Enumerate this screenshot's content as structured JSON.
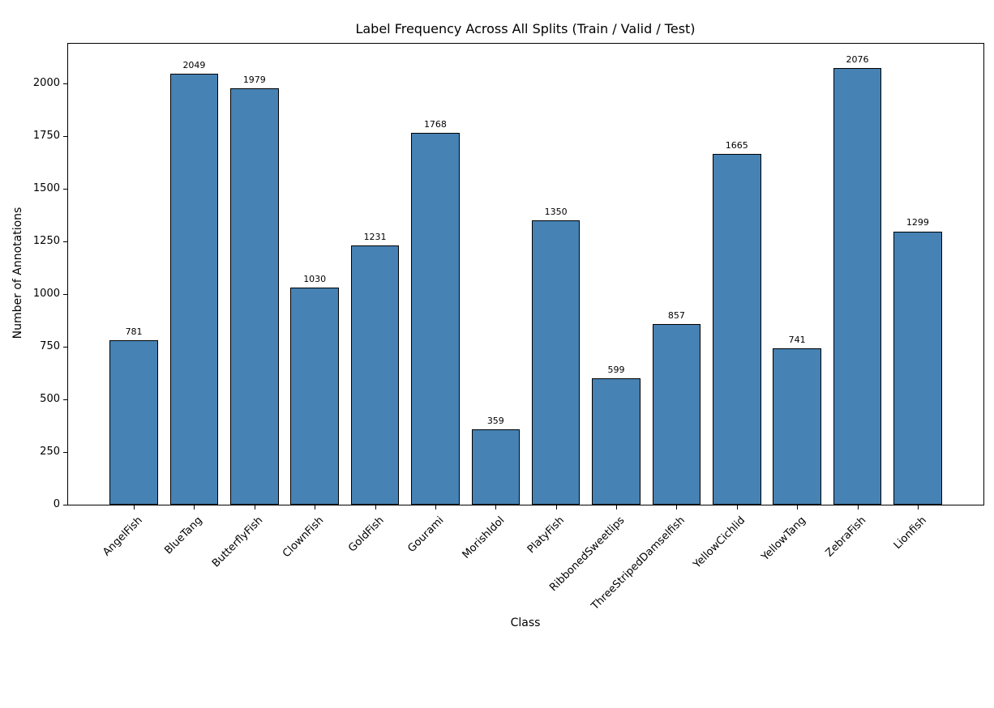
{
  "chart_data": {
    "type": "bar",
    "title": "Label Frequency Across All Splits (Train / Valid / Test)",
    "xlabel": "Class",
    "ylabel": "Number of Annotations",
    "categories": [
      "AngelFish",
      "BlueTang",
      "ButterflyFish",
      "ClownFish",
      "GoldFish",
      "Gourami",
      "MorishIdol",
      "PlatyFish",
      "RibbonedSweetlips",
      "ThreeStripedDamselfish",
      "YellowCichlid",
      "YellowTang",
      "ZebraFish",
      "Lionfish"
    ],
    "values": [
      781,
      2049,
      1979,
      1030,
      1231,
      1768,
      359,
      1350,
      599,
      857,
      1665,
      741,
      2076,
      1299
    ],
    "yticks": [
      0,
      250,
      500,
      750,
      1000,
      1250,
      1500,
      1750,
      2000
    ],
    "ylim": [
      0,
      2190
    ],
    "xlim": [
      -1.09,
      14.09
    ],
    "bar_width_units": 0.8,
    "bar_color": "#4682b4",
    "bar_edge_color": "#000000",
    "value_labels_shown": true,
    "grid": false,
    "legend": null,
    "background_color": "#ffffff"
  }
}
